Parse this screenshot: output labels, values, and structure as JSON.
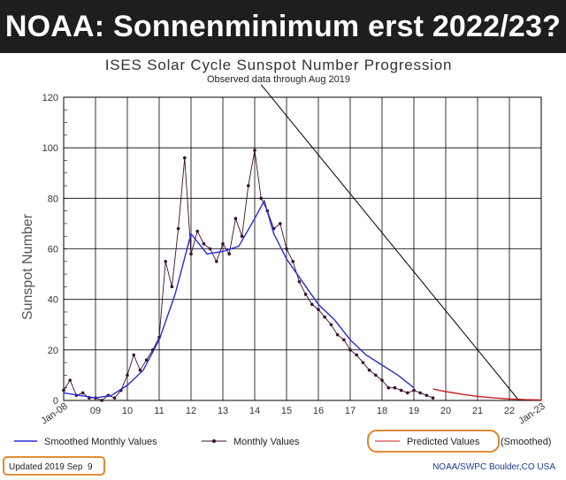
{
  "banner": {
    "title": "NOAA: Sonnenminimum erst 2022/23?"
  },
  "colors": {
    "banner_bg": "#1e1e1e",
    "smoothed": "#2a2ad8",
    "monthly": "#3a0f2f",
    "predicted": "#c81e1e",
    "highlight": "#e07b1c"
  },
  "chart_data": {
    "type": "line",
    "title": "ISES Solar Cycle Sunspot Number Progression",
    "subtitle": "Observed data through Aug 2019",
    "ylabel": "Sunspot Number",
    "xlabel": "",
    "ylim": [
      0,
      120
    ],
    "yticks": [
      0,
      20,
      40,
      60,
      80,
      100,
      120
    ],
    "xlim": [
      2008.0,
      2023.0
    ],
    "xticks": [
      {
        "value": 2008,
        "label": "Jan-08"
      },
      {
        "value": 2009,
        "label": "09"
      },
      {
        "value": 2010,
        "label": "10"
      },
      {
        "value": 2011,
        "label": "11"
      },
      {
        "value": 2012,
        "label": "12"
      },
      {
        "value": 2013,
        "label": "13"
      },
      {
        "value": 2014,
        "label": "14"
      },
      {
        "value": 2015,
        "label": "15"
      },
      {
        "value": 2016,
        "label": "16"
      },
      {
        "value": 2017,
        "label": "17"
      },
      {
        "value": 2018,
        "label": "18"
      },
      {
        "value": 2019,
        "label": "19"
      },
      {
        "value": 2020,
        "label": "20"
      },
      {
        "value": 2021,
        "label": "21"
      },
      {
        "value": 2022,
        "label": "22"
      },
      {
        "value": 2023,
        "label": "Jan-23"
      }
    ],
    "grid": true,
    "legend": {
      "smoothed_label": "Smoothed Monthly Values",
      "monthly_label": "Monthly Values",
      "predicted_label": "Predicted Values",
      "predicted_suffix": "(Smoothed)"
    },
    "updated": "Updated 2019 Sep  9",
    "credit": "NOAA/SWPC Boulder,CO USA",
    "annotation_line": {
      "from": [
        2014.2,
        125
      ],
      "to": [
        2022.3,
        0
      ]
    },
    "series": [
      {
        "name": "Monthly Values",
        "x": [
          2008.0,
          2008.2,
          2008.4,
          2008.6,
          2008.8,
          2009.0,
          2009.2,
          2009.4,
          2009.6,
          2009.8,
          2010.0,
          2010.2,
          2010.4,
          2010.6,
          2010.8,
          2011.0,
          2011.2,
          2011.4,
          2011.6,
          2011.8,
          2012.0,
          2012.2,
          2012.4,
          2012.6,
          2012.8,
          2013.0,
          2013.2,
          2013.4,
          2013.6,
          2013.8,
          2014.0,
          2014.2,
          2014.4,
          2014.6,
          2014.8,
          2015.0,
          2015.2,
          2015.4,
          2015.6,
          2015.8,
          2016.0,
          2016.2,
          2016.4,
          2016.6,
          2016.8,
          2017.0,
          2017.2,
          2017.4,
          2017.6,
          2017.8,
          2018.0,
          2018.2,
          2018.4,
          2018.6,
          2018.8,
          2019.0,
          2019.2,
          2019.4,
          2019.6
        ],
        "values": [
          4,
          8,
          2,
          3,
          1,
          1,
          0,
          2,
          1,
          4,
          10,
          18,
          12,
          16,
          20,
          25,
          55,
          45,
          68,
          96,
          58,
          67,
          62,
          60,
          55,
          62,
          58,
          72,
          65,
          85,
          99,
          80,
          75,
          68,
          70,
          60,
          55,
          47,
          42,
          38,
          36,
          33,
          30,
          26,
          24,
          20,
          18,
          15,
          12,
          10,
          8,
          5,
          5,
          4,
          3,
          4,
          3,
          2,
          1
        ]
      },
      {
        "name": "Smoothed Monthly Values",
        "x": [
          2008.0,
          2008.5,
          2009.0,
          2009.5,
          2010.0,
          2010.5,
          2011.0,
          2011.5,
          2012.0,
          2012.5,
          2013.0,
          2013.5,
          2014.0,
          2014.3,
          2014.6,
          2015.0,
          2015.5,
          2016.0,
          2016.5,
          2017.0,
          2017.5,
          2018.0,
          2018.5,
          2019.0
        ],
        "values": [
          3,
          2,
          1,
          2,
          6,
          12,
          24,
          42,
          66,
          58,
          59,
          61,
          72,
          79,
          66,
          56,
          47,
          38,
          32,
          24,
          18,
          14,
          10,
          5
        ]
      },
      {
        "name": "Predicted Values",
        "x": [
          2019.6,
          2020.0,
          2020.5,
          2021.0,
          2021.5,
          2022.0,
          2022.5,
          2023.0
        ],
        "values": [
          4.5,
          3.5,
          2.5,
          1.6,
          1.0,
          0.6,
          0.3,
          0.2
        ]
      }
    ]
  }
}
